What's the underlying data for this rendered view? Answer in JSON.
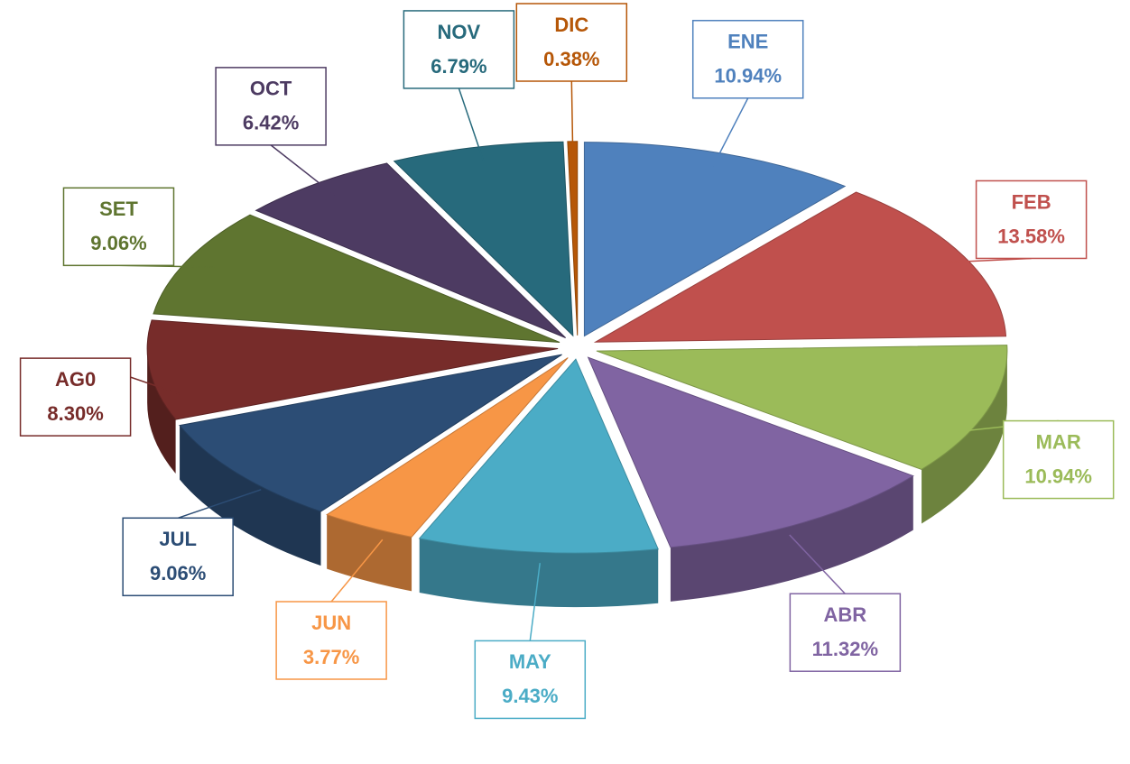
{
  "chart_data": {
    "type": "pie3d",
    "categories": [
      "ENE",
      "FEB",
      "MAR",
      "ABR",
      "MAY",
      "JUN",
      "JUL",
      "AG0",
      "SET",
      "OCT",
      "NOV",
      "DIC"
    ],
    "values": [
      10.94,
      13.58,
      10.94,
      11.32,
      9.43,
      3.77,
      9.06,
      8.3,
      9.06,
      6.42,
      6.79,
      0.38
    ],
    "value_labels": [
      "10.94%",
      "13.58%",
      "10.94%",
      "11.32%",
      "9.43%",
      "3.77%",
      "9.06%",
      "8.30%",
      "9.06%",
      "6.42%",
      "6.79%",
      "0.38%"
    ],
    "colors": [
      "#4f81bd",
      "#c0504d",
      "#9bbb59",
      "#8064a2",
      "#4bacc6",
      "#f79646",
      "#2c4d75",
      "#772c2a",
      "#5f7530",
      "#4d3b62",
      "#276a7c",
      "#b65708"
    ]
  }
}
